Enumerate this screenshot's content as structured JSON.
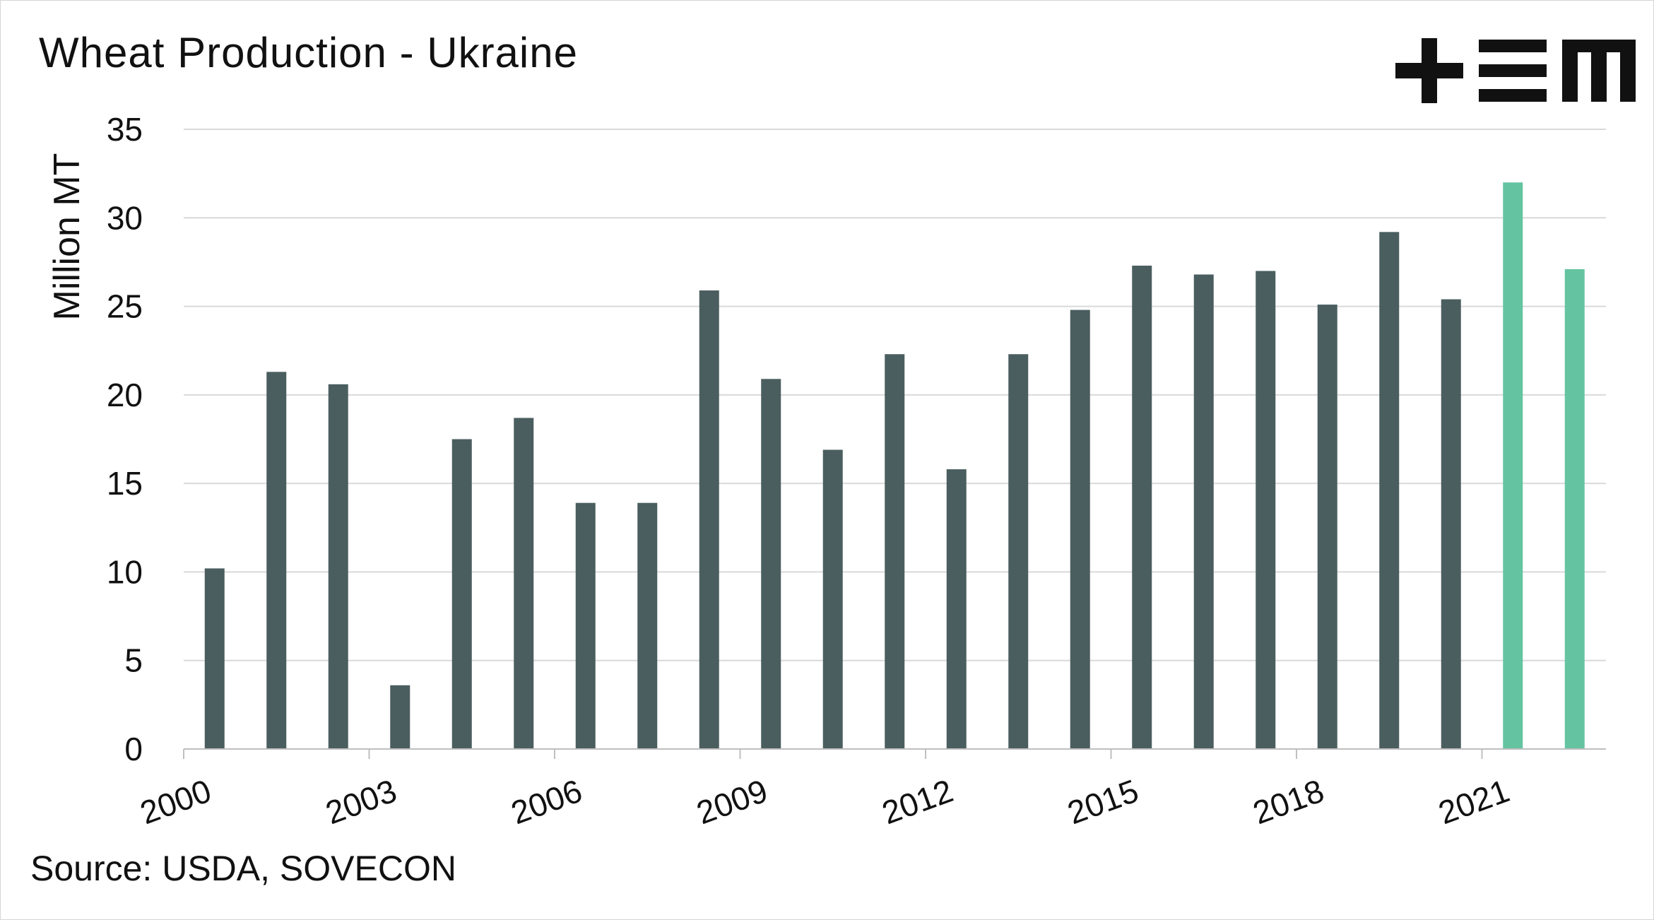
{
  "title": "Wheat Production - Ukraine",
  "source": "Source: USDA, SOVECON",
  "logo": {
    "name": "tem-logo",
    "text": "TEM"
  },
  "colors": {
    "bar": "#4b5e5f",
    "highlight": "#64c4a2",
    "grid": "#d9d9d9",
    "axis": "#bfbfbf"
  },
  "chart_data": {
    "type": "bar",
    "title": "Wheat Production - Ukraine",
    "xlabel": "",
    "ylabel": "Million MT",
    "ylim": [
      0,
      35
    ],
    "yticks": [
      0,
      5,
      10,
      15,
      20,
      25,
      30,
      35
    ],
    "x_tick_labels": [
      "2000",
      "2003",
      "2006",
      "2009",
      "2012",
      "2015",
      "2018",
      "2021"
    ],
    "grid": true,
    "categories": [
      "2000",
      "2001",
      "2002",
      "2003",
      "2004",
      "2005",
      "2006",
      "2007",
      "2008",
      "2009",
      "2010",
      "2011",
      "2012",
      "2013",
      "2014",
      "2015",
      "2016",
      "2017",
      "2018",
      "2019",
      "2020",
      "2021",
      "2022"
    ],
    "values": [
      10.2,
      21.3,
      20.6,
      3.6,
      17.5,
      18.7,
      13.9,
      13.9,
      25.9,
      20.9,
      16.9,
      22.3,
      15.8,
      22.3,
      24.8,
      27.3,
      26.8,
      27.0,
      25.1,
      29.2,
      25.4,
      32.0,
      27.1
    ],
    "highlight_categories": [
      "2021",
      "2022"
    ]
  }
}
